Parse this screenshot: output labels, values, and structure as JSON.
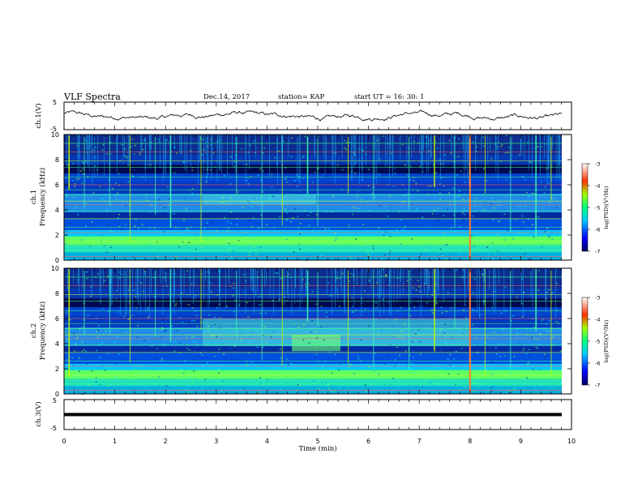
{
  "header": {
    "title": "VLF Spectra",
    "date": "Dec.14, 2017",
    "station": "station= KAP",
    "start_time": "start  UT =   16: 30: 1"
  },
  "chart_data": [
    {
      "type": "line",
      "name": "ch1-waveform",
      "ylabel": "ch.1(V)",
      "ylim": [
        -5,
        5
      ],
      "yticks": [
        "5",
        "-5"
      ],
      "xlim": [
        0,
        10
      ],
      "description_series": "oscillating trace around 0 V, amplitude about ±2 V"
    },
    {
      "type": "heatmap",
      "name": "ch1-spectrogram",
      "ylabel": "ch.1",
      "ylabel2": "Frequency  (kHz)",
      "ylim": [
        0,
        10
      ],
      "yticks": [
        "0",
        "2",
        "4",
        "6",
        "8",
        "10"
      ],
      "xlim": [
        0,
        10
      ],
      "colorbar": {
        "label": "log(PSD)(V²/Hz)",
        "range": [
          -7,
          -3
        ],
        "ticks": [
          "-3",
          "-4",
          "-5",
          "-6",
          "-7"
        ]
      }
    },
    {
      "type": "heatmap",
      "name": "ch2-spectrogram",
      "ylabel": "ch.2",
      "ylabel2": "Frequency  (kHz)",
      "ylim": [
        0,
        10
      ],
      "yticks": [
        "0",
        "2",
        "4",
        "6",
        "8",
        "10"
      ],
      "xlim": [
        0,
        10
      ],
      "colorbar": {
        "label": "log(PSD)(V²/Hz)",
        "range": [
          -7,
          -3
        ],
        "ticks": [
          "-3",
          "-4",
          "-5",
          "-6",
          "-7"
        ]
      }
    },
    {
      "type": "line",
      "name": "ch3-waveform",
      "ylabel": "ch.3(V)",
      "ylim": [
        -5,
        5
      ],
      "yticks": [
        "5",
        "-5"
      ],
      "xlim": [
        0,
        10
      ],
      "y_value": 0
    }
  ],
  "xaxis": {
    "label": "Time  (min)",
    "ticks": [
      "0",
      "1",
      "2",
      "3",
      "4",
      "5",
      "6",
      "7",
      "8",
      "9",
      "10"
    ]
  },
  "labels": {
    "ch1_wave": "ch.1(V)",
    "ch1_spec_a": "ch.1",
    "ch1_spec_b": "Frequency  (kHz)",
    "ch2_spec_a": "ch.2",
    "ch2_spec_b": "Frequency  (kHz)",
    "ch3_wave": "ch.3(V)",
    "cb1": "log(PSD)(V²/Hz)",
    "cb2": "log(PSD)(V²/Hz)"
  }
}
